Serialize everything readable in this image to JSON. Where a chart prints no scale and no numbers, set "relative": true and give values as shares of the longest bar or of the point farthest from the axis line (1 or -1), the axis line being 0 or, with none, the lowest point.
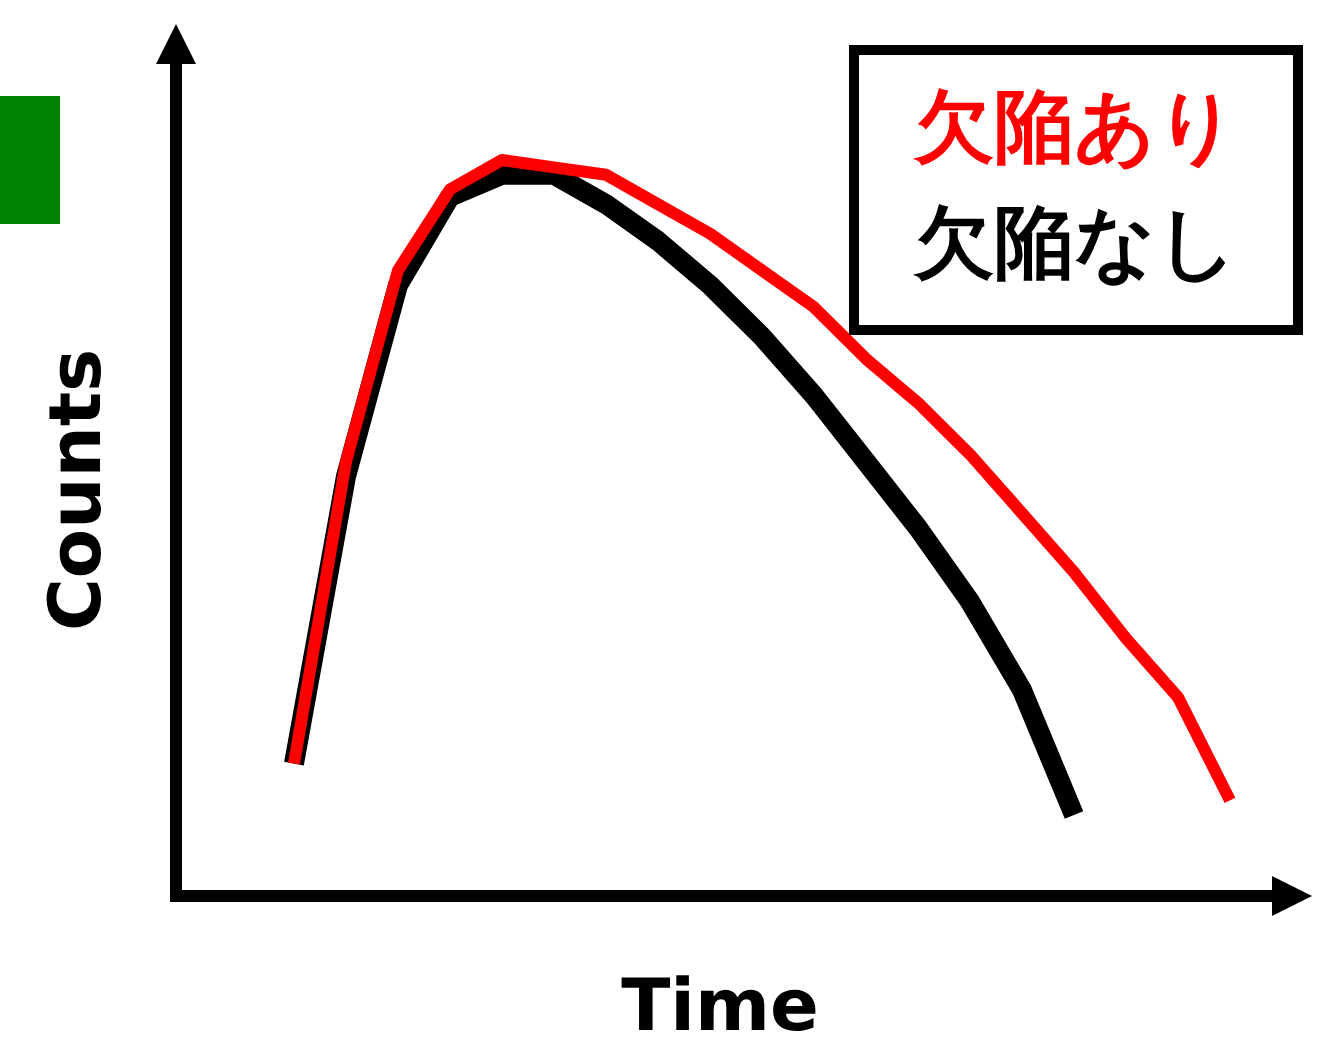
{
  "chart_data": {
    "type": "line",
    "relative": true,
    "xlabel": "Time",
    "ylabel": "Counts",
    "legend": "top right",
    "categories": [
      null,
      null,
      null,
      null,
      null,
      null,
      null,
      null,
      null,
      null,
      null,
      null,
      null,
      null,
      null,
      null,
      null,
      null,
      null
    ],
    "series": [
      {
        "name": "欠陥あり",
        "color": "#ff0000",
        "values": [
          0.18,
          0.59,
          0.85,
          0.96,
          1,
          0.99,
          0.98,
          0.94,
          0.9,
          0.85,
          0.8,
          0.73,
          0.67,
          0.6,
          0.52,
          0.44,
          0.35,
          0.27,
          0.13
        ]
      },
      {
        "name": "欠陥なし",
        "color": "#000000",
        "values": [
          0.18,
          0.57,
          0.83,
          0.95,
          0.98,
          0.98,
          0.94,
          0.89,
          0.83,
          0.76,
          0.68,
          0.59,
          0.5,
          0.4,
          0.28,
          0.11,
          null,
          null,
          null
        ]
      }
    ]
  }
}
